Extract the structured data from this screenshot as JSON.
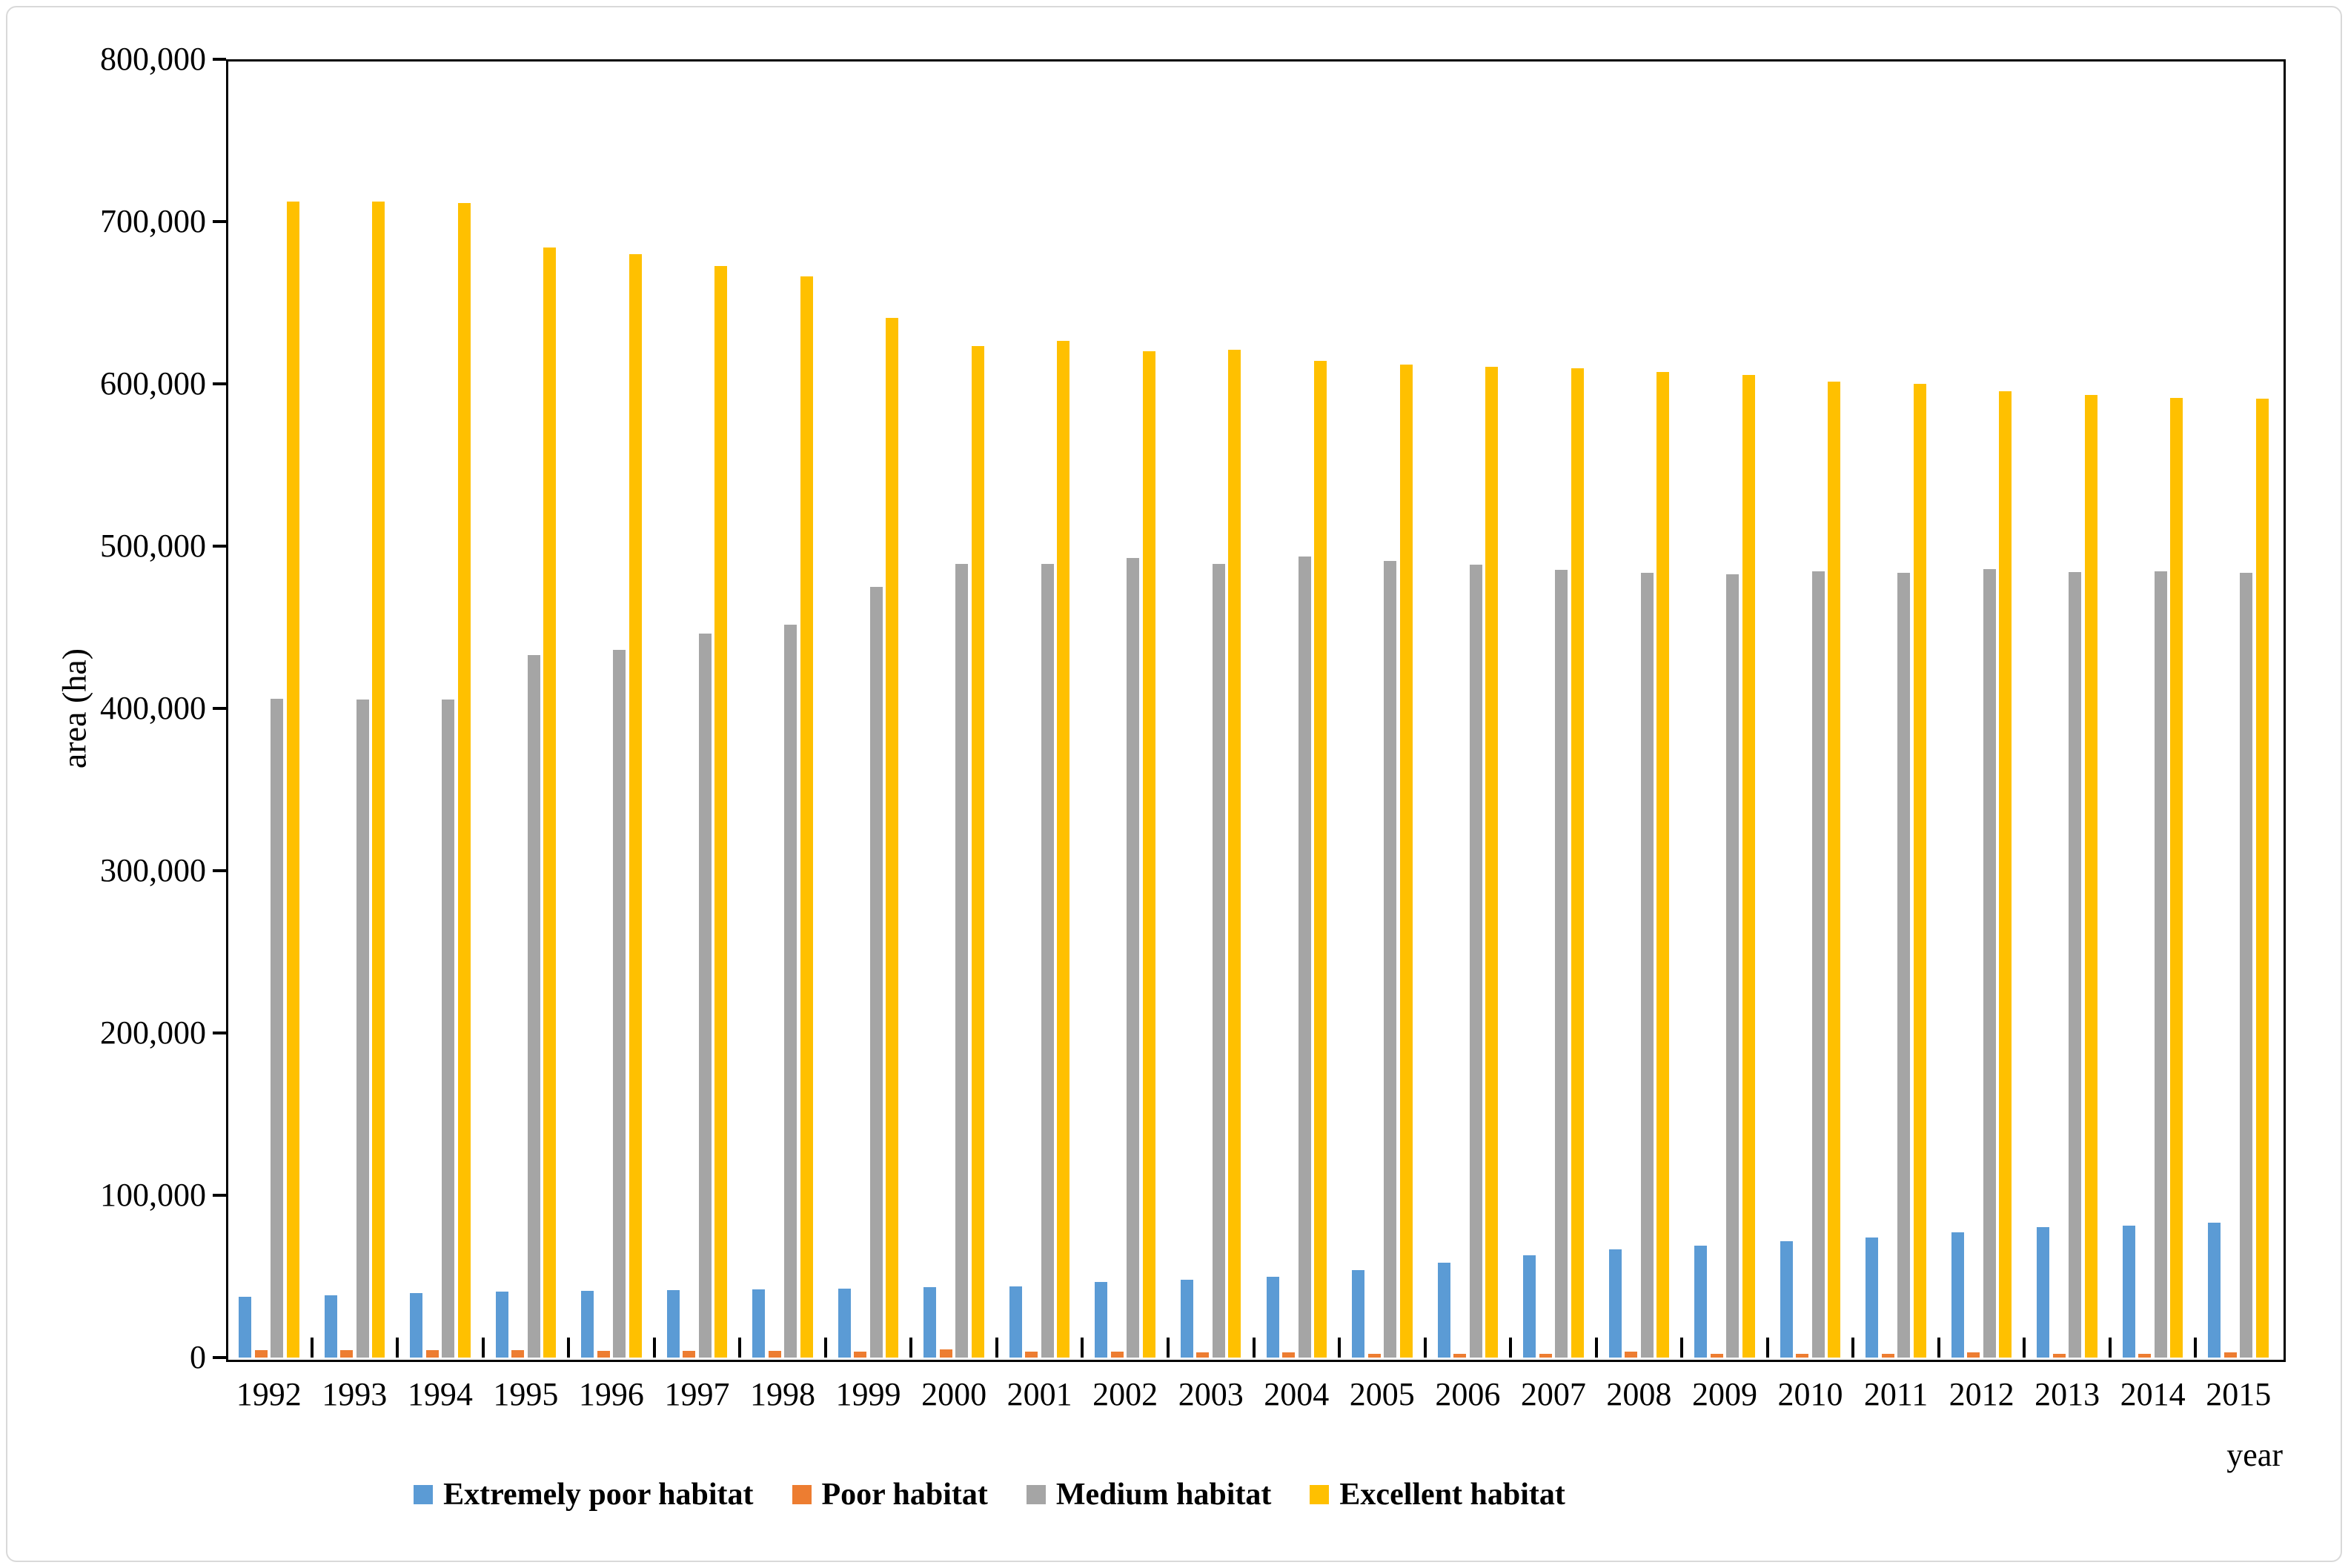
{
  "chart_data": {
    "type": "bar",
    "title": "",
    "ylabel": "area (ha)",
    "xlabel": "year",
    "ylim": [
      0,
      800000
    ],
    "ytick_step": 100000,
    "ytick_labels": [
      "0",
      "100,000",
      "200,000",
      "300,000",
      "400,000",
      "500,000",
      "600,000",
      "700,000",
      "800,000"
    ],
    "grid": false,
    "legend_position": "bottom",
    "axis_color": "#000000",
    "categories": [
      "1992",
      "1993",
      "1994",
      "1995",
      "1996",
      "1997",
      "1998",
      "1999",
      "2000",
      "2001",
      "2002",
      "2003",
      "2004",
      "2005",
      "2006",
      "2007",
      "2008",
      "2009",
      "2010",
      "2011",
      "2012",
      "2013",
      "2014",
      "2015"
    ],
    "series": [
      {
        "name": "Extremely poor habitat",
        "color": "#5B9BD5",
        "values": [
          37500,
          38500,
          39500,
          40500,
          41000,
          41500,
          42000,
          42500,
          43500,
          44000,
          46500,
          48000,
          50000,
          54000,
          58500,
          63000,
          66500,
          69000,
          71500,
          74000,
          77000,
          80500,
          81500,
          83000
        ]
      },
      {
        "name": "Poor habitat",
        "color": "#ED7D31",
        "values": [
          4500,
          4500,
          4500,
          4500,
          4000,
          4000,
          4000,
          3500,
          5000,
          3500,
          3500,
          3000,
          3000,
          2500,
          2500,
          2500,
          3500,
          2500,
          2500,
          2500,
          3000,
          2500,
          2500,
          3000
        ]
      },
      {
        "name": "Medium habitat",
        "color": "#A5A5A5",
        "values": [
          406000,
          405500,
          405500,
          433000,
          436000,
          446000,
          451500,
          475000,
          489000,
          489000,
          492500,
          489000,
          493500,
          491000,
          488500,
          485500,
          483500,
          482500,
          484500,
          483500,
          486000,
          484000,
          484500,
          483500
        ]
      },
      {
        "name": "Excellent habitat",
        "color": "#FFC000",
        "values": [
          712500,
          712500,
          711500,
          684000,
          680000,
          672500,
          666000,
          640500,
          623500,
          626500,
          620000,
          621000,
          614000,
          612000,
          610500,
          609500,
          607500,
          605500,
          601500,
          600000,
          595500,
          593000,
          591500,
          591000
        ]
      }
    ]
  }
}
